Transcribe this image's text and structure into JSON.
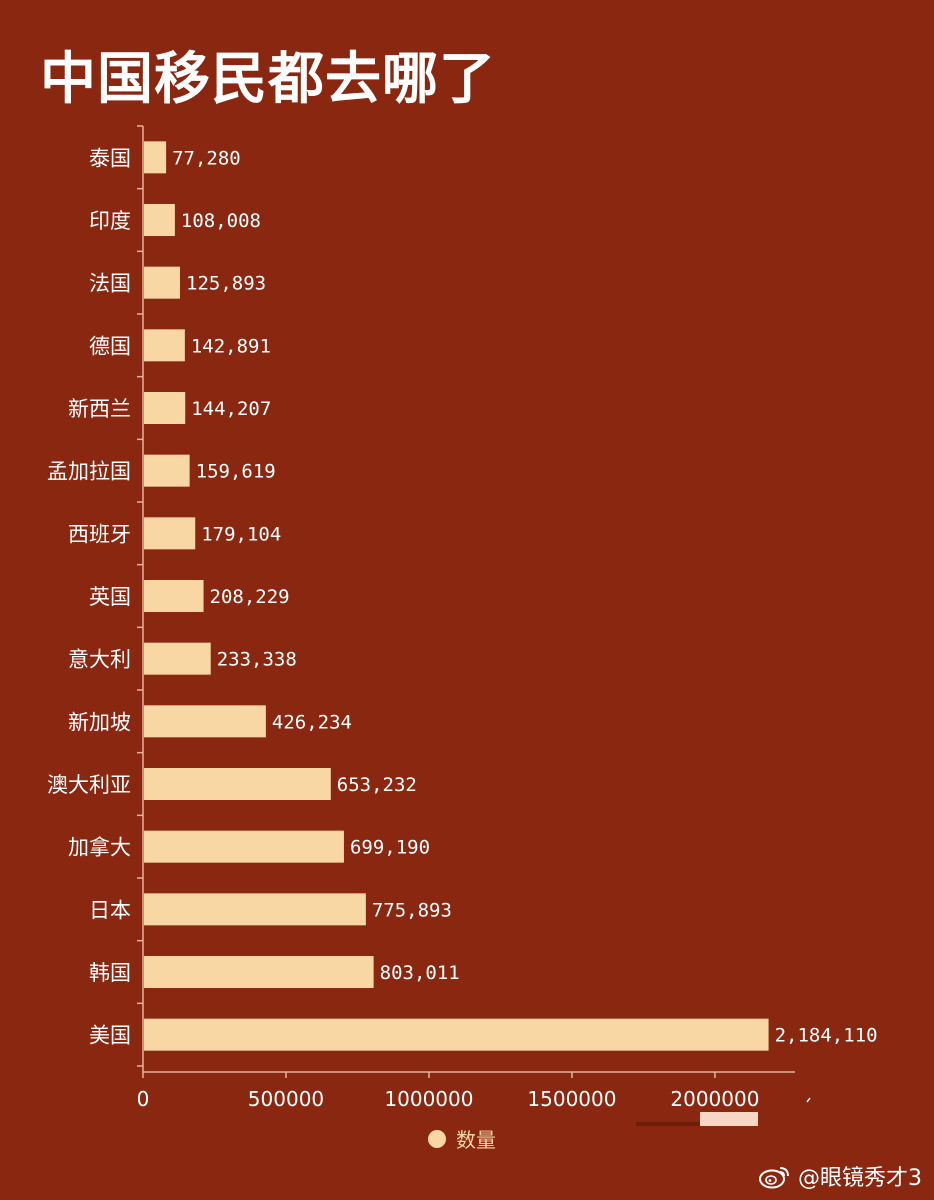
{
  "title": "中国移民都去哪了",
  "legend": {
    "label": "数量"
  },
  "watermark": {
    "text": "@眼镜秀才3",
    "icon": "weibo-icon"
  },
  "colors": {
    "background": "#892711",
    "bar": "#f8d7a5",
    "text": "#ffffff",
    "axis": "#e8b49a"
  },
  "chart_data": {
    "type": "bar",
    "orientation": "horizontal",
    "title": "中国移民都去哪了",
    "categories": [
      "泰国",
      "印度",
      "法国",
      "德国",
      "新西兰",
      "孟加拉国",
      "西班牙",
      "英国",
      "意大利",
      "新加坡",
      "澳大利亚",
      "加拿大",
      "日本",
      "韩国",
      "美国"
    ],
    "values": [
      77280,
      108008,
      125893,
      142891,
      144207,
      159619,
      179104,
      208229,
      233338,
      426234,
      653232,
      699190,
      775893,
      803011,
      2184110
    ],
    "value_labels": [
      "77,280",
      "108,008",
      "125,893",
      "142,891",
      "144,207",
      "159,619",
      "179,104",
      "208,229",
      "233,338",
      "426,234",
      "653,232",
      "699,190",
      "775,893",
      "803,011",
      "2,184,110"
    ],
    "series": [
      {
        "name": "数量"
      }
    ],
    "xlim": [
      0,
      2350000
    ],
    "xticks": [
      0,
      500000,
      1000000,
      1500000,
      2000000
    ],
    "xtick_labels": [
      "0",
      "500000",
      "1000000",
      "1500000",
      "2000000"
    ],
    "legend_position": "bottom-center",
    "grid": false
  }
}
